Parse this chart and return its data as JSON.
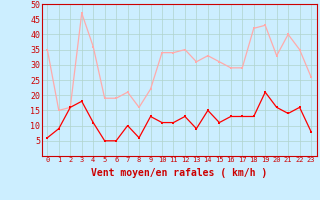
{
  "hours": [
    0,
    1,
    2,
    3,
    4,
    5,
    6,
    7,
    8,
    9,
    10,
    11,
    12,
    13,
    14,
    15,
    16,
    17,
    18,
    19,
    20,
    21,
    22,
    23
  ],
  "avg_wind": [
    6,
    9,
    16,
    18,
    11,
    5,
    5,
    10,
    6,
    13,
    11,
    11,
    13,
    9,
    15,
    11,
    13,
    13,
    13,
    21,
    16,
    14,
    16,
    8
  ],
  "gust_wind": [
    35,
    15,
    16,
    47,
    36,
    19,
    19,
    21,
    16,
    22,
    34,
    34,
    35,
    31,
    33,
    31,
    29,
    29,
    42,
    43,
    33,
    40,
    35,
    26
  ],
  "avg_color": "#ff0000",
  "gust_color": "#ffaaaa",
  "bg_color": "#cceeff",
  "grid_color": "#b0d4cc",
  "xlabel": "Vent moyen/en rafales ( km/h )",
  "ylim": [
    0,
    50
  ],
  "yticks": [
    5,
    10,
    15,
    20,
    25,
    30,
    35,
    40,
    45,
    50
  ],
  "xtick_fontsize": 5,
  "ytick_fontsize": 6,
  "label_fontsize": 7,
  "tick_color": "#cc0000",
  "spine_color": "#cc0000",
  "marker_size": 2.0,
  "line_width": 0.9
}
